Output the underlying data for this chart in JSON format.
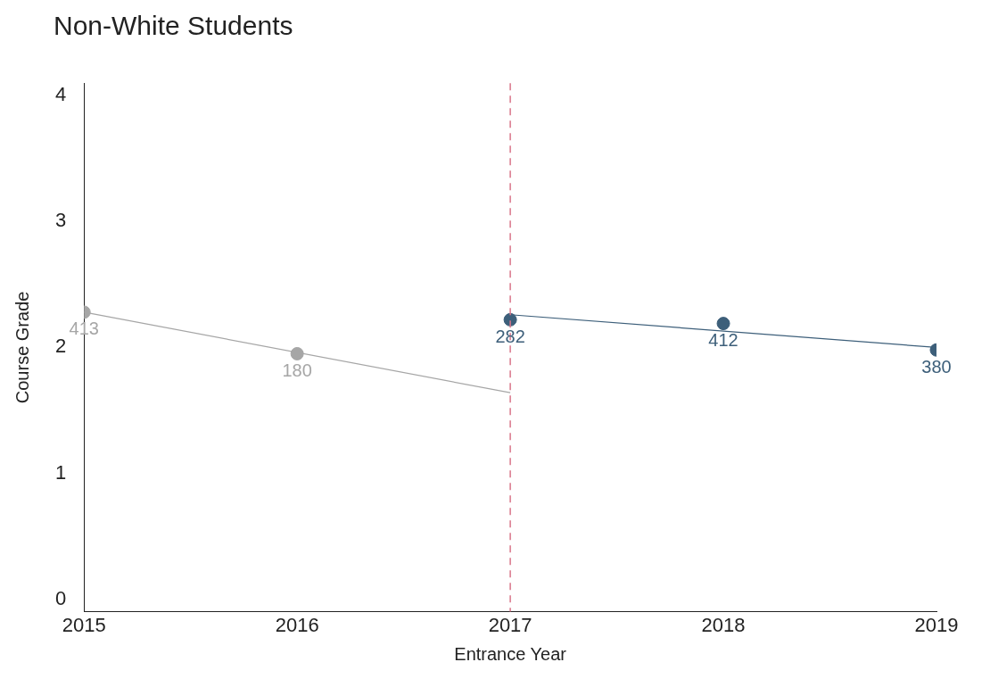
{
  "chart_data": {
    "type": "scatter",
    "title": "Non-White Students",
    "xlabel": "Entrance Year",
    "ylabel": "Course Grade",
    "xlim": [
      2015,
      2019
    ],
    "xticks": [
      2015,
      2016,
      2017,
      2018,
      2019
    ],
    "ylim": [
      -0.1,
      4.1
    ],
    "yticks": [
      0,
      1,
      2,
      3,
      4
    ],
    "grid": false,
    "legend": false,
    "marker": "circle",
    "series": [
      {
        "type": "scatter",
        "color": "#a6a6a6",
        "x": [
          2015,
          2016
        ],
        "values": [
          2.28,
          1.95
        ]
      },
      {
        "type": "line",
        "color": "#a6a6a6",
        "x": [
          2015,
          2017
        ],
        "values": [
          2.28,
          1.64
        ],
        "marker": "none"
      },
      {
        "type": "scatter",
        "color": "#3d5f7a",
        "x": [
          2017,
          2018,
          2019
        ],
        "values": [
          2.22,
          2.19,
          1.98
        ]
      },
      {
        "type": "line",
        "color": "#3d5f7a",
        "x": [
          2017,
          2019
        ],
        "values": [
          2.26,
          2.0
        ],
        "marker": "none"
      }
    ],
    "ref_lines": [
      {
        "axis": "x",
        "value": 2017,
        "color": "#d9768a",
        "line_style": "dashed"
      }
    ],
    "annotations": [
      {
        "text": "413",
        "x": 2015,
        "y": 2.28
      },
      {
        "text": "180",
        "x": 2016,
        "y": 1.95
      },
      {
        "text": "282",
        "x": 2017,
        "y": 2.22
      },
      {
        "text": "412",
        "x": 2018,
        "y": 2.19
      },
      {
        "text": "380",
        "x": 2019,
        "y": 1.98
      }
    ]
  }
}
